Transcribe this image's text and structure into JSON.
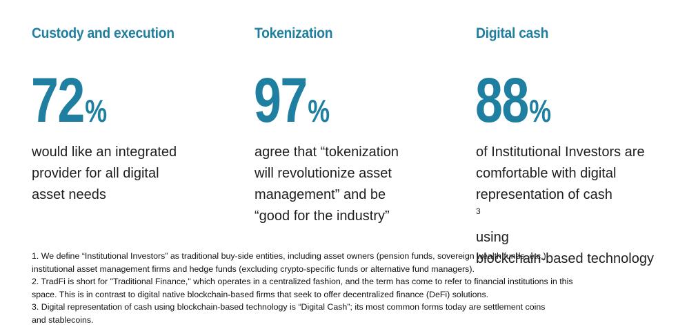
{
  "stats": [
    {
      "title": "Custody and execution",
      "figure": "72",
      "percent_sign": "%",
      "description_lines": [
        "would like an integrated",
        "provider for all digital",
        "asset needs"
      ]
    },
    {
      "title": "Tokenization",
      "figure": "97",
      "percent_sign": "%",
      "description_lines": [
        "agree that “tokenization",
        "will revolutionize asset",
        "management” and be",
        "“good for the industry”"
      ]
    },
    {
      "title": "Digital cash",
      "figure": "88",
      "percent_sign": "%",
      "description_lines": [
        "of Institutional Investors are",
        "comfortable with digital",
        "representation of cash",
        "blockchain-based technology"
      ],
      "line3_superscript": "3",
      "line3_suffix": "using"
    }
  ],
  "footnotes": [
    "1. We define “Institutional Investors” as traditional buy-side entities, including asset owners (pension funds, sovereign wealth funds, etc.),",
    "institutional asset management firms and hedge funds (excluding crypto-specific funds or alternative fund managers).",
    "2. TradFi is short for \"Traditional Finance,\" which operates in a centralized fashion, and the term has come to refer to financial institutions in this",
    "space. This is in contrast to digital native blockchain-based firms that seek to offer decentralized finance (DeFi) solutions.",
    "3. Digital representation of cash using blockchain-based technology is “Digital Cash”; its most common forms today are settlement coins",
    "and stablecoins."
  ],
  "colors": {
    "accent": "#1f7fa1",
    "text": "#1e1e1e"
  }
}
